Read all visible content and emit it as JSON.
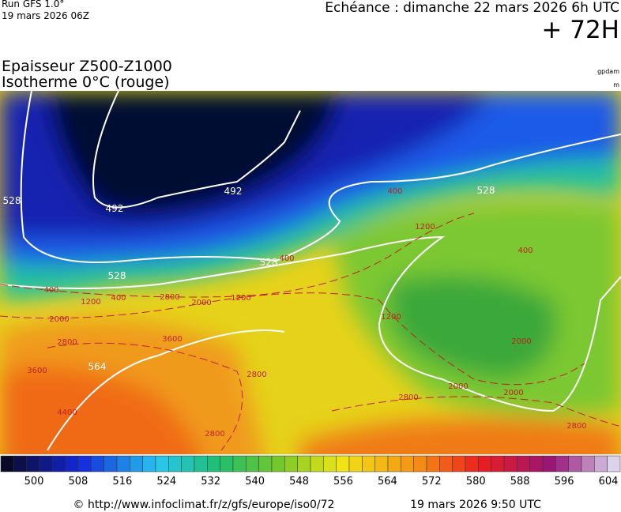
{
  "header": {
    "run": "Run GFS 1.0°",
    "run_date": "19 mars 2026 06Z",
    "echeance": "Echéance : dimanche 22 mars 2026 6h UTC",
    "lead": "+ 72H"
  },
  "map": {
    "title_line1": "Epaisseur Z500-Z1000",
    "title_line2": "Isotherme 0°C (rouge)",
    "unit_top": "gpdam",
    "unit_bottom": "m",
    "thickness_labels": [
      "492",
      "492",
      "528",
      "528",
      "528",
      "528",
      "564"
    ],
    "isotherm_labels": [
      "400",
      "400",
      "400",
      "400",
      "400",
      "1200",
      "1200",
      "1200",
      "1200",
      "2000",
      "2000",
      "2000",
      "2000",
      "2000",
      "2800",
      "2800",
      "2800",
      "2800",
      "2800",
      "2800",
      "3600",
      "3600",
      "4400"
    ],
    "colorbar_ticks": [
      500,
      508,
      516,
      524,
      532,
      540,
      548,
      556,
      564,
      572,
      580,
      588,
      596,
      604
    ]
  },
  "footer": {
    "url": "© http://www.infoclimat.fr/z/gfs/europe/iso0/72",
    "timestamp": "19 mars 2026  9:50 UTC"
  }
}
